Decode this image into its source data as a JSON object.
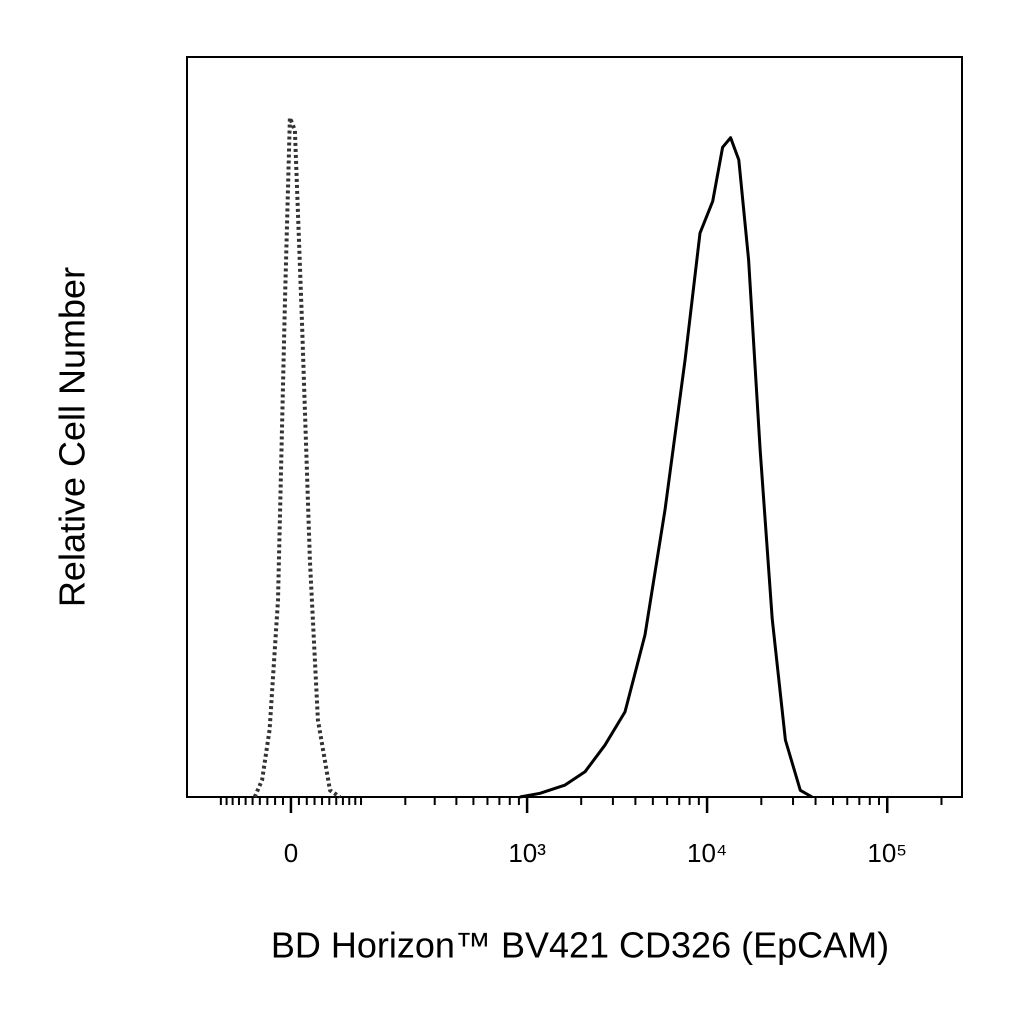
{
  "chart_data": {
    "type": "line",
    "xlabel": "BD Horizon™ BV421 CD326 (EpCAM)",
    "ylabel": "Relative Cell Number",
    "xscale": "biexponential",
    "xlim": [
      -172,
      260000
    ],
    "ylim": [
      0,
      100
    ],
    "xticks": [
      {
        "value": 0,
        "label": "0"
      },
      {
        "value": 1000,
        "label": "10³"
      },
      {
        "value": 10000,
        "label": "10⁴"
      },
      {
        "value": 100000,
        "label": "10⁵"
      }
    ],
    "xminor_ticks": [
      -100,
      -90,
      -80,
      -70,
      -60,
      -50,
      -40,
      -30,
      -20,
      -10,
      10,
      20,
      30,
      40,
      50,
      60,
      70,
      80,
      90,
      100,
      200,
      300,
      400,
      500,
      600,
      700,
      800,
      900,
      2000,
      3000,
      4000,
      5000,
      6000,
      7000,
      8000,
      9000,
      20000,
      30000,
      40000,
      50000,
      60000,
      70000,
      80000,
      90000,
      200000
    ],
    "grid": false,
    "series": [
      {
        "color": "#333333",
        "style": "dotted",
        "x": [
          -47,
          -37,
          -27,
          -16.3,
          -7.5,
          -1.3,
          4.9,
          13.8,
          24,
          34.5,
          51,
          65.5
        ],
        "values": [
          0,
          2.3,
          9.1,
          26.6,
          67.2,
          91.8,
          90.1,
          64.5,
          32.0,
          10.4,
          0.9,
          0
        ]
      },
      {
        "color": "#000000",
        "style": "solid",
        "x": [
          912,
          1180,
          1620,
          2100,
          2710,
          3500,
          4520,
          5840,
          7540,
          9130,
          10750,
          12200,
          13500,
          15000,
          17000,
          19700,
          23000,
          27200,
          32900,
          38300
        ],
        "values": [
          0,
          0.5,
          1.6,
          3.4,
          7.0,
          11.5,
          21.9,
          38.8,
          59.0,
          76.2,
          80.5,
          87.8,
          89.1,
          86.1,
          72.6,
          47,
          24.1,
          7.7,
          0.9,
          0
        ]
      }
    ]
  }
}
